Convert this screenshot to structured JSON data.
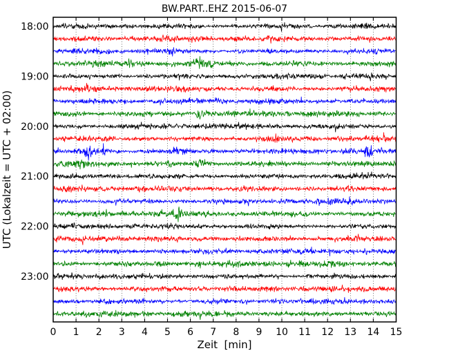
{
  "chart_data": {
    "type": "line",
    "subtype": "seismogram-dayplot",
    "title": "BW.PART..EHZ 2015-06-07",
    "station": "BW.PART..EHZ",
    "date": "2015-06-07",
    "xlabel": "Zeit  [min]",
    "ylabel": "UTC (Lokalzeit = UTC + 02:00)",
    "x_range": [
      0,
      15
    ],
    "x_ticks": [
      "0",
      "1",
      "2",
      "3",
      "4",
      "5",
      "6",
      "7",
      "8",
      "9",
      "10",
      "11",
      "12",
      "13",
      "14",
      "15"
    ],
    "minutes_per_line": 15,
    "grid": {
      "vertical_minute_lines": [
        1,
        2,
        3,
        4,
        5,
        6,
        7,
        8,
        9,
        10,
        11,
        12,
        13,
        14
      ],
      "style": "dotted"
    },
    "legend": "none",
    "color_cycle": [
      "#000000",
      "#ff0000",
      "#0000ff",
      "#008000"
    ],
    "hour_tick_labels": [
      "18:00",
      "19:00",
      "20:00",
      "21:00",
      "22:00",
      "23:00"
    ],
    "traces": [
      {
        "time": "18:00",
        "tick_label": "18:00",
        "color": "#000000",
        "seed": 101,
        "amp": 0.92,
        "bursts": [
          {
            "t": 10.1,
            "w": 0.15,
            "a": 0.6
          }
        ]
      },
      {
        "time": "18:15",
        "tick_label": "",
        "color": "#ff0000",
        "seed": 102,
        "amp": 1.0,
        "bursts": []
      },
      {
        "time": "18:30",
        "tick_label": "",
        "color": "#0000ff",
        "seed": 103,
        "amp": 0.95,
        "bursts": []
      },
      {
        "time": "18:45",
        "tick_label": "",
        "color": "#008000",
        "seed": 104,
        "amp": 1.05,
        "bursts": [
          {
            "t": 6.3,
            "w": 0.3,
            "a": 0.8
          }
        ]
      },
      {
        "time": "19:00",
        "tick_label": "19:00",
        "color": "#000000",
        "seed": 105,
        "amp": 0.92,
        "bursts": []
      },
      {
        "time": "19:15",
        "tick_label": "",
        "color": "#ff0000",
        "seed": 106,
        "amp": 1.0,
        "bursts": []
      },
      {
        "time": "19:30",
        "tick_label": "",
        "color": "#0000ff",
        "seed": 107,
        "amp": 0.95,
        "bursts": [
          {
            "t": 7.2,
            "w": 0.35,
            "a": 0.5
          }
        ]
      },
      {
        "time": "19:45",
        "tick_label": "",
        "color": "#008000",
        "seed": 108,
        "amp": 1.05,
        "bursts": [
          {
            "t": 0.6,
            "w": 0.2,
            "a": 0.9
          },
          {
            "t": 6.45,
            "w": 0.22,
            "a": 1.9
          }
        ]
      },
      {
        "time": "20:00",
        "tick_label": "20:00",
        "color": "#000000",
        "seed": 109,
        "amp": 0.95,
        "bursts": []
      },
      {
        "time": "20:15",
        "tick_label": "",
        "color": "#ff0000",
        "seed": 110,
        "amp": 1.0,
        "bursts": [
          {
            "t": 9.6,
            "w": 0.5,
            "a": 0.5
          }
        ]
      },
      {
        "time": "20:30",
        "tick_label": "",
        "color": "#0000ff",
        "seed": 111,
        "amp": 0.95,
        "bursts": [
          {
            "t": 1.55,
            "w": 0.22,
            "a": 1.7
          },
          {
            "t": 2.2,
            "w": 0.18,
            "a": 1.0
          },
          {
            "t": 5.4,
            "w": 0.25,
            "a": 1.2
          },
          {
            "t": 13.75,
            "w": 0.22,
            "a": 1.7
          }
        ]
      },
      {
        "time": "20:45",
        "tick_label": "",
        "color": "#008000",
        "seed": 112,
        "amp": 1.05,
        "bursts": [
          {
            "t": 1.2,
            "w": 0.25,
            "a": 1.0
          },
          {
            "t": 6.4,
            "w": 0.25,
            "a": 1.6
          }
        ]
      },
      {
        "time": "21:00",
        "tick_label": "21:00",
        "color": "#000000",
        "seed": 113,
        "amp": 0.92,
        "bursts": []
      },
      {
        "time": "21:15",
        "tick_label": "",
        "color": "#ff0000",
        "seed": 114,
        "amp": 1.0,
        "bursts": []
      },
      {
        "time": "21:30",
        "tick_label": "",
        "color": "#0000ff",
        "seed": 115,
        "amp": 0.95,
        "bursts": []
      },
      {
        "time": "21:45",
        "tick_label": "",
        "color": "#008000",
        "seed": 116,
        "amp": 1.05,
        "bursts": [
          {
            "t": 4.6,
            "w": 0.2,
            "a": 0.8
          },
          {
            "t": 5.5,
            "w": 0.2,
            "a": 1.2
          }
        ]
      },
      {
        "time": "22:00",
        "tick_label": "22:00",
        "color": "#000000",
        "seed": 117,
        "amp": 0.92,
        "bursts": []
      },
      {
        "time": "22:15",
        "tick_label": "",
        "color": "#ff0000",
        "seed": 118,
        "amp": 1.0,
        "bursts": []
      },
      {
        "time": "22:30",
        "tick_label": "",
        "color": "#0000ff",
        "seed": 119,
        "amp": 0.95,
        "bursts": []
      },
      {
        "time": "22:45",
        "tick_label": "",
        "color": "#008000",
        "seed": 120,
        "amp": 1.05,
        "bursts": []
      },
      {
        "time": "23:00",
        "tick_label": "23:00",
        "color": "#000000",
        "seed": 121,
        "amp": 0.92,
        "bursts": []
      },
      {
        "time": "23:15",
        "tick_label": "",
        "color": "#ff0000",
        "seed": 122,
        "amp": 1.0,
        "bursts": []
      },
      {
        "time": "23:30",
        "tick_label": "",
        "color": "#0000ff",
        "seed": 123,
        "amp": 0.95,
        "bursts": []
      },
      {
        "time": "23:45",
        "tick_label": "",
        "color": "#008000",
        "seed": 124,
        "amp": 1.05,
        "bursts": []
      }
    ],
    "colors": {
      "background": "#ffffff",
      "axis": "#000000",
      "grid": "#333333"
    }
  }
}
